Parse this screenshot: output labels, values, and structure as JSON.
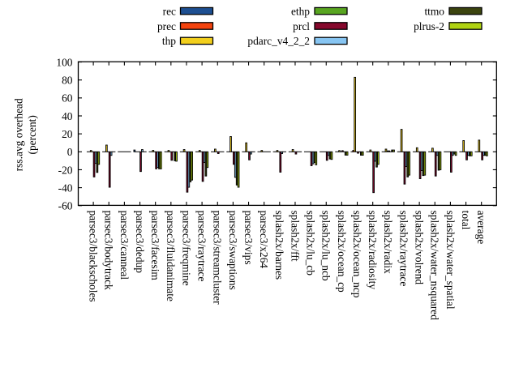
{
  "chart_data": {
    "type": "bar",
    "title": "",
    "xlabel": "",
    "ylabel_line1": "rss.avg overhead",
    "ylabel_line2": "(percent)",
    "ylim": [
      -60,
      100
    ],
    "yticks": [
      100,
      80,
      60,
      40,
      20,
      0,
      -20,
      -40,
      -60
    ],
    "grid": false,
    "legend_position": "top-outside-3-columns",
    "background_color": "#ffffff",
    "border_color": "#000000",
    "bar_outline_color": "#000000",
    "categories": [
      "parsec3/blackscholes",
      "parsec3/bodytrack",
      "parsec3/canneal",
      "parsec3/dedup",
      "parsec3/facesim",
      "parsec3/fluidanimate",
      "parsec3/freqmine",
      "parsec3/raytrace",
      "parsec3/streamcluster",
      "parsec3/swaptions",
      "parsec3/vips",
      "parsec3/x264",
      "splash2x/barnes",
      "splash2x/fft",
      "splash2x/lu_cb",
      "splash2x/lu_ncb",
      "splash2x/ocean_cp",
      "splash2x/ocean_ncp",
      "splash2x/radiosity",
      "splash2x/radix",
      "splash2x/raytrace",
      "splash2x/volrend",
      "splash2x/water_nsquared",
      "splash2x/water_spatial",
      "total",
      "average"
    ],
    "series": [
      {
        "name": "rec",
        "color": "#1d4f91",
        "values": [
          0,
          0,
          0,
          2,
          0,
          0,
          0,
          0,
          0,
          0,
          0,
          0,
          0,
          0,
          0,
          0,
          0,
          0,
          0,
          0,
          0,
          0,
          0,
          0,
          0,
          0
        ]
      },
      {
        "name": "prec",
        "color": "#f3430e",
        "values": [
          0,
          0,
          0,
          0,
          0,
          0,
          0,
          0,
          0,
          0,
          0,
          0,
          0,
          0,
          0,
          0,
          0,
          1.5,
          0,
          0,
          0,
          0,
          0,
          0,
          0,
          0
        ]
      },
      {
        "name": "thp",
        "color": "#f2cf1d",
        "values": [
          1.5,
          7.5,
          0,
          0,
          1.6,
          1.5,
          2.5,
          1.5,
          3,
          17,
          10,
          1.5,
          1.5,
          2.5,
          0,
          0,
          1.4,
          83,
          2,
          3,
          25,
          4.5,
          4,
          0,
          12.5,
          13
        ]
      },
      {
        "name": "ethp",
        "color": "#58a520",
        "values": [
          0,
          0,
          0,
          0,
          0,
          0,
          0,
          0,
          0,
          0,
          0,
          0,
          0,
          0,
          0,
          0,
          0,
          0,
          0,
          1,
          0,
          0,
          0,
          0,
          0,
          0
        ]
      },
      {
        "name": "prcl",
        "color": "#86082c",
        "values": [
          -28,
          -39.5,
          0,
          -22,
          -19,
          -9.5,
          -45,
          -33,
          -2,
          -14,
          -9,
          0,
          -22.7,
          -2.5,
          -15.5,
          -9.5,
          1.3,
          -1.6,
          -45.5,
          1,
          -36,
          -30,
          -27,
          -22.7,
          -9,
          -9
        ]
      },
      {
        "name": "pdarc_v4_2_2",
        "color": "#87c5f2",
        "values": [
          -13,
          -4,
          0,
          2.5,
          -17.5,
          0,
          -39.5,
          -12,
          0,
          -28.5,
          -2.5,
          0,
          -2,
          0,
          -13.5,
          -4,
          0,
          0,
          -10.5,
          0,
          -16.5,
          -21,
          -4,
          -4,
          -4,
          -4
        ]
      },
      {
        "name": "ttmo",
        "color": "#3b440e",
        "values": [
          -23,
          0,
          0,
          0,
          -19,
          -10,
          -33.5,
          -27,
          0,
          -37,
          0,
          0,
          0,
          0,
          -12,
          -8,
          -3.7,
          -3.8,
          -17,
          2,
          -28,
          -26.5,
          -20.5,
          -2.5,
          -4.5,
          -4
        ]
      },
      {
        "name": "plrus-2",
        "color": "#b0d311",
        "values": [
          -14,
          0,
          0,
          0,
          -19,
          -10.5,
          -31.5,
          -17.5,
          0,
          -39.5,
          0,
          0,
          0,
          0,
          -14.5,
          -8.5,
          -3.7,
          -3.8,
          -14,
          2,
          -26,
          -26,
          -20,
          -4,
          -4.5,
          -4.5
        ]
      }
    ],
    "legend_columns": [
      [
        "rec",
        "prec",
        "thp"
      ],
      [
        "ethp",
        "prcl",
        "pdarc_v4_2_2"
      ],
      [
        "ttmo",
        "plrus-2"
      ]
    ]
  }
}
